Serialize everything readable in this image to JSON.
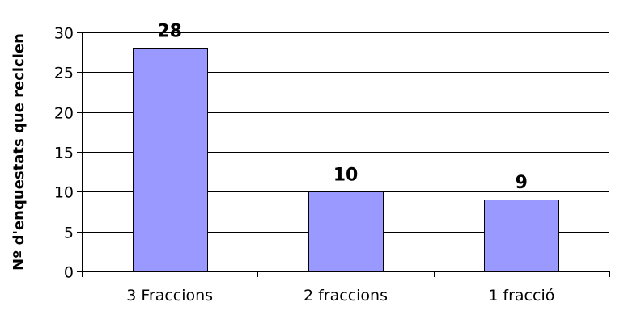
{
  "chart_data": {
    "type": "bar",
    "title": "",
    "xlabel": "",
    "ylabel": "Nº d'enquestats que reciclen",
    "categories": [
      "3 Fraccions",
      "2 fraccions",
      "1 fracció"
    ],
    "values": [
      28,
      10,
      9
    ],
    "data_labels": [
      "28",
      "10",
      "9"
    ],
    "ylim": [
      0,
      30
    ],
    "yticks": [
      "0",
      "5",
      "10",
      "15",
      "20",
      "25",
      "30"
    ],
    "grid": true,
    "legend": "none",
    "bar_color": "#9999ff",
    "bar_border_color": "#000000"
  }
}
